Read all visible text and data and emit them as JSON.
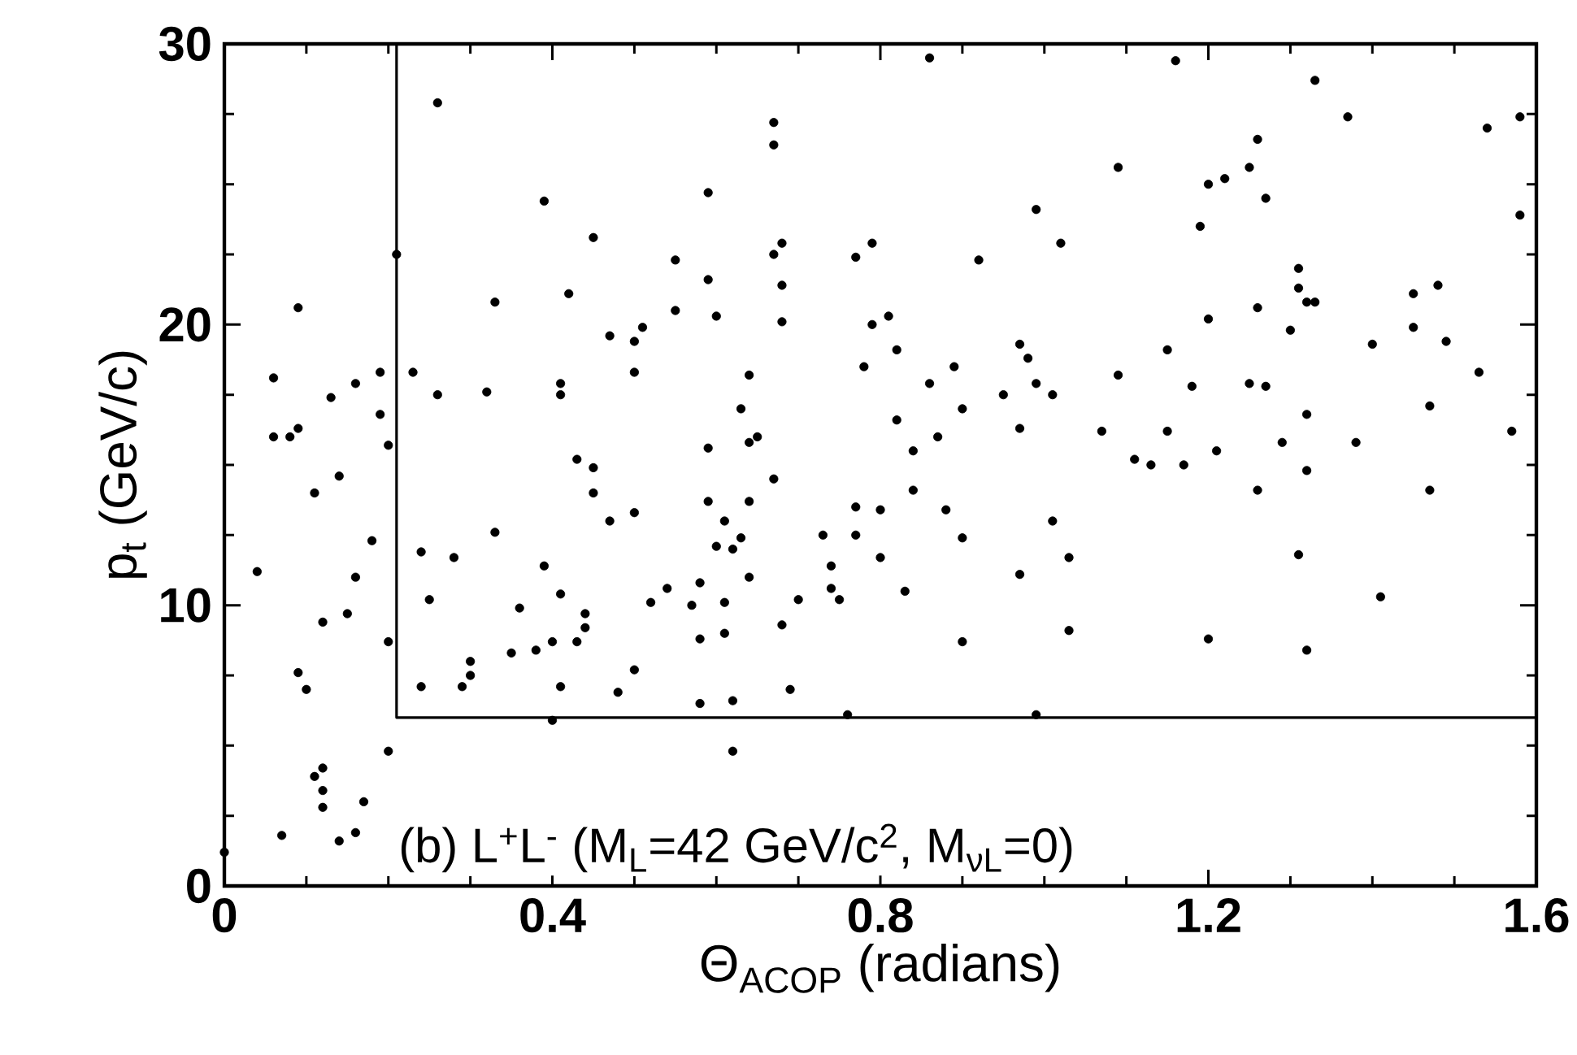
{
  "chart_data": {
    "type": "scatter",
    "xlabel": "Θ$_{ACOP}$ (radians)",
    "ylabel": "p$_{t}$ (GeV/c)",
    "annotations": [
      "(b) L$^{+}$L$^{-}$ (M$_{L}$=42 GeV/c$^{2}$, M$_{νL}$=0)"
    ],
    "xlim": [
      0,
      1.6
    ],
    "ylim": [
      0,
      30
    ],
    "xticks": [
      0,
      0.4,
      0.8,
      1.2,
      1.6
    ],
    "yticks": [
      0,
      10,
      20,
      30
    ],
    "marker": "circle",
    "series": [
      {
        "color": "#000000",
        "x": [
          0.26,
          0.39,
          0.45,
          0.09,
          0.21,
          0.33,
          0.42,
          0.47,
          0.51,
          0.5,
          0.06,
          0.16,
          0.13,
          0.19,
          0.23,
          0.26,
          0.32,
          0.41,
          0.41,
          0.5,
          0.19,
          0.06,
          0.08,
          0.09,
          0.2,
          0.67,
          0.67,
          0.59,
          0.99,
          1.02,
          0.55,
          0.68,
          0.67,
          0.77,
          0.79,
          0.92,
          0.59,
          0.68,
          0.55,
          0.6,
          0.68,
          0.79,
          0.81,
          0.82,
          0.97,
          0.98,
          0.78,
          0.89,
          0.64,
          0.86,
          0.99,
          0.95,
          1.01,
          0.63,
          0.9,
          0.82,
          0.97,
          0.87,
          1.07,
          0.65,
          0.64,
          0.59,
          0.84,
          1.33,
          1.37,
          1.54,
          1.58,
          1.26,
          1.09,
          1.2,
          1.22,
          1.25,
          1.27,
          1.19,
          1.58,
          1.31,
          1.31,
          1.32,
          1.33,
          1.45,
          1.48,
          1.2,
          1.26,
          1.3,
          1.45,
          1.4,
          1.49,
          1.15,
          1.09,
          1.18,
          1.25,
          1.27,
          1.53,
          1.32,
          1.47,
          1.15,
          1.21,
          1.29,
          1.38,
          1.57,
          0.86,
          1.16,
          0.14,
          0.11,
          0.43,
          0.45,
          0.45,
          0.5,
          0.47,
          0.33,
          0.18,
          0.24,
          0.28,
          0.39,
          0.04,
          0.16,
          0.41,
          0.25,
          0.36,
          0.52,
          0.15,
          0.12,
          0.44,
          0.44,
          0.2,
          0.4,
          0.43,
          0.35,
          0.38,
          0.3,
          0.3,
          0.09,
          0.1,
          0.24,
          0.29,
          0.41,
          0.5,
          0.48,
          0.4,
          0.2,
          0.12,
          0.11,
          0.12,
          0.12,
          0.17,
          0.16,
          0.14,
          0.07,
          0.0,
          0.67,
          0.59,
          0.64,
          0.61,
          0.6,
          0.63,
          0.62,
          0.84,
          0.77,
          0.8,
          0.88,
          0.73,
          0.77,
          0.9,
          1.01,
          1.03,
          0.8,
          0.97,
          0.74,
          0.54,
          0.58,
          0.64,
          0.57,
          0.74,
          0.75,
          0.7,
          0.61,
          0.83,
          0.68,
          0.58,
          0.61,
          0.9,
          1.03,
          0.69,
          0.58,
          0.62,
          0.76,
          0.99,
          0.62,
          1.11,
          1.13,
          1.17,
          1.32,
          1.26,
          1.47,
          1.31,
          1.41,
          1.2,
          1.32
        ],
        "values": [
          27.9,
          24.4,
          23.1,
          20.6,
          22.5,
          20.8,
          21.1,
          19.6,
          19.9,
          19.4,
          18.1,
          17.9,
          17.4,
          18.3,
          18.3,
          17.5,
          17.6,
          17.9,
          17.5,
          18.3,
          16.8,
          16.0,
          16.0,
          16.3,
          15.7,
          27.2,
          26.4,
          24.7,
          24.1,
          22.9,
          22.3,
          22.9,
          22.5,
          22.4,
          22.9,
          22.3,
          21.6,
          21.4,
          20.5,
          20.3,
          20.1,
          20.0,
          20.3,
          19.1,
          19.3,
          18.8,
          18.5,
          18.5,
          18.2,
          17.9,
          17.9,
          17.5,
          17.5,
          17.0,
          17.0,
          16.6,
          16.3,
          16.0,
          16.2,
          16.0,
          15.8,
          15.6,
          15.5,
          28.7,
          27.4,
          27.0,
          27.4,
          26.6,
          25.6,
          25.0,
          25.2,
          25.6,
          24.5,
          23.5,
          23.9,
          22.0,
          21.3,
          20.8,
          20.8,
          21.1,
          21.4,
          20.2,
          20.6,
          19.8,
          19.9,
          19.3,
          19.4,
          19.1,
          18.2,
          17.8,
          17.9,
          17.8,
          18.3,
          16.8,
          17.1,
          16.2,
          15.5,
          15.8,
          15.8,
          16.2,
          29.5,
          29.4,
          14.6,
          14.0,
          15.2,
          14.9,
          14.0,
          13.3,
          13.0,
          12.6,
          12.3,
          11.9,
          11.7,
          11.4,
          11.2,
          11.0,
          10.4,
          10.2,
          9.9,
          10.1,
          9.7,
          9.4,
          9.7,
          9.2,
          8.7,
          8.7,
          8.7,
          8.3,
          8.4,
          8.0,
          7.5,
          7.6,
          7.0,
          7.1,
          7.1,
          7.1,
          7.7,
          6.9,
          5.9,
          4.8,
          4.2,
          3.9,
          3.4,
          2.8,
          3.0,
          1.9,
          1.6,
          1.8,
          1.2,
          14.5,
          13.7,
          13.7,
          13.0,
          12.1,
          12.4,
          12.0,
          14.1,
          13.5,
          13.4,
          13.4,
          12.5,
          12.5,
          12.4,
          13.0,
          11.7,
          11.7,
          11.1,
          11.4,
          10.6,
          10.8,
          11.0,
          10.0,
          10.6,
          10.2,
          10.2,
          10.1,
          10.5,
          9.3,
          8.8,
          9.0,
          8.7,
          9.1,
          7.0,
          6.5,
          6.6,
          6.1,
          6.1,
          4.8,
          15.2,
          15.0,
          15.0,
          14.8,
          14.1,
          14.1,
          11.8,
          10.3,
          8.8,
          8.4
        ]
      },
      {
        "type": "line",
        "color": "#000000",
        "marker": "none",
        "x": [
          0.21,
          0.21,
          1.6
        ],
        "values": [
          30,
          6,
          6
        ]
      }
    ]
  }
}
